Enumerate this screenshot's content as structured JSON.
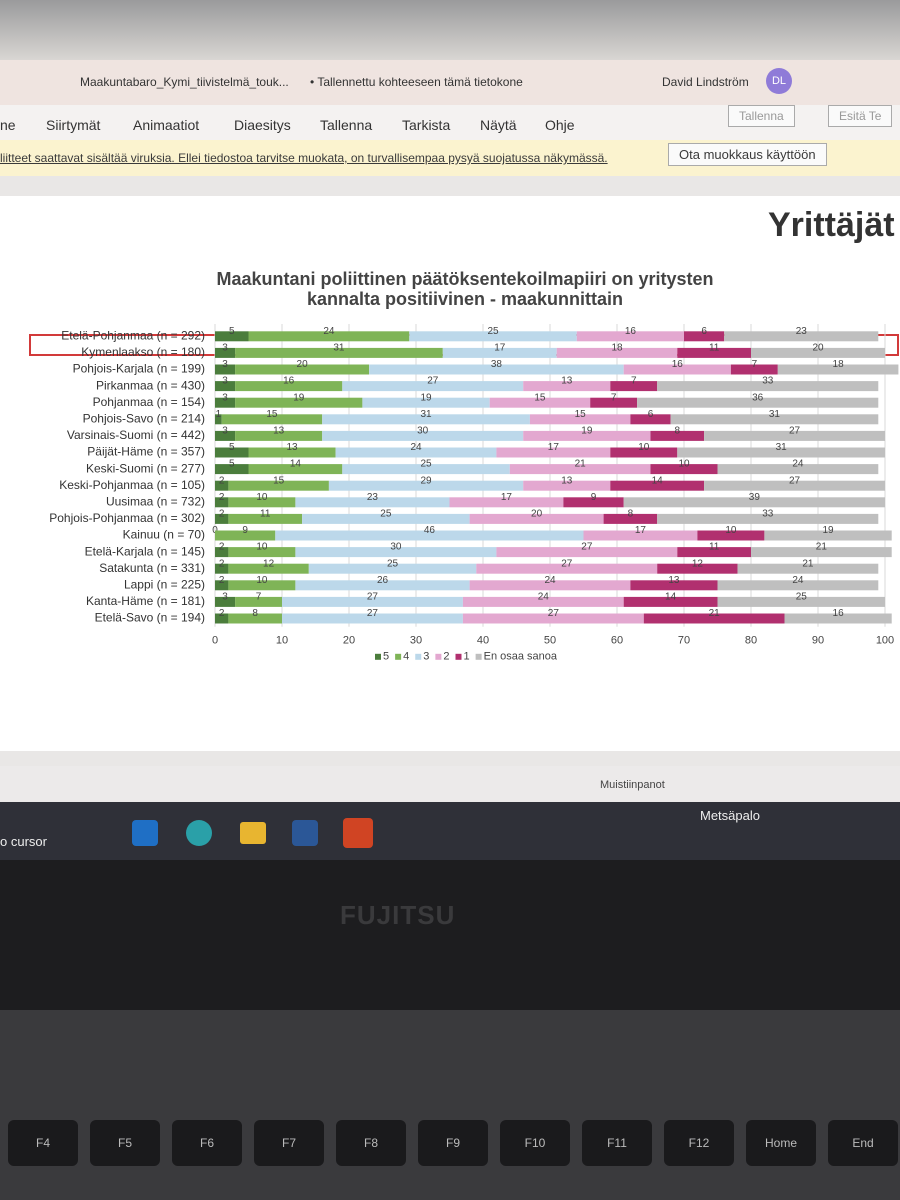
{
  "window": {
    "file_name": "Maakuntabaro_Kymi_tiivistelmä_touk...",
    "save_status": "• Tallennettu kohteeseen tämä tietokone",
    "user_name": "David Lindström",
    "user_initials": "DL"
  },
  "ribbon": {
    "tabs": [
      "ne",
      "Siirtymät",
      "Animaatiot",
      "Diaesitys",
      "Tallenna",
      "Tarkista",
      "Näytä",
      "Ohje"
    ],
    "buttons": [
      "Tallenna",
      "Esitä Te"
    ]
  },
  "warning_bar": {
    "message": "liitteet saattavat sisältää viruksia. Ellei tiedostoa tarvitse muokata, on turvallisempaa pysyä suojatussa näkymässä.",
    "button": "Ota muokkaus käyttöön"
  },
  "slide": {
    "header": "Yrittäjät"
  },
  "chart_data": {
    "type": "stacked_bar_horizontal",
    "title": [
      "Maakuntani poliittinen päätöksentekoilmapiiri on yritysten",
      "kannalta positiivinen - maakunnittain"
    ],
    "categories": [
      "Etelä-Pohjanmaa (n = 292)",
      "Kymenlaakso (n = 180)",
      "Pohjois-Karjala (n = 199)",
      "Pirkanmaa (n = 430)",
      "Pohjanmaa (n = 154)",
      "Pohjois-Savo (n = 214)",
      "Varsinais-Suomi (n = 442)",
      "Päijät-Häme (n = 357)",
      "Keski-Suomi (n = 277)",
      "Keski-Pohjanmaa (n = 105)",
      "Uusimaa (n = 732)",
      "Pohjois-Pohjanmaa (n = 302)",
      "Kainuu (n = 70)",
      "Etelä-Karjala (n = 145)",
      "Satakunta (n = 331)",
      "Lappi (n = 225)",
      "Kanta-Häme (n = 181)",
      "Etelä-Savo (n = 194)"
    ],
    "series": [
      {
        "name": "5",
        "color": "#4b7d3c",
        "values": [
          5,
          3,
          3,
          3,
          3,
          1,
          3,
          5,
          5,
          2,
          2,
          2,
          0,
          2,
          2,
          2,
          3,
          2
        ]
      },
      {
        "name": "4",
        "color": "#7fb457",
        "values": [
          24,
          31,
          20,
          16,
          19,
          15,
          13,
          13,
          14,
          15,
          10,
          11,
          9,
          10,
          12,
          10,
          7,
          8
        ]
      },
      {
        "name": "3",
        "color": "#bcd8ea",
        "values": [
          25,
          17,
          38,
          27,
          19,
          31,
          30,
          24,
          25,
          29,
          23,
          25,
          46,
          30,
          25,
          26,
          27,
          27
        ]
      },
      {
        "name": "2",
        "color": "#e3a8d0",
        "values": [
          16,
          18,
          16,
          13,
          15,
          15,
          19,
          17,
          21,
          13,
          17,
          20,
          17,
          27,
          27,
          24,
          24,
          27
        ]
      },
      {
        "name": "1",
        "color": "#b1306f",
        "values": [
          6,
          11,
          7,
          7,
          7,
          6,
          8,
          10,
          10,
          14,
          9,
          8,
          10,
          11,
          12,
          13,
          14,
          21
        ]
      },
      {
        "name": "En osaa sanoa",
        "color": "#bfbfbf",
        "values": [
          23,
          20,
          18,
          33,
          36,
          31,
          27,
          31,
          24,
          27,
          39,
          33,
          19,
          21,
          21,
          24,
          25,
          16
        ]
      }
    ],
    "xlim": [
      0,
      100
    ],
    "xticks": [
      0,
      10,
      20,
      30,
      40,
      50,
      60,
      70,
      80,
      90,
      100
    ],
    "grid": true,
    "legend": "bottom"
  },
  "status_bar": {
    "notes": "Muistiinpanot"
  },
  "taskbar": {
    "search": "o cursor",
    "weather": "Metsäpalo"
  },
  "laptop": {
    "brand": "FUJITSU",
    "keys": [
      "F4",
      "F5",
      "F6",
      "F7",
      "F8",
      "F9",
      "F10",
      "F11",
      "F12",
      "Home",
      "End"
    ]
  }
}
